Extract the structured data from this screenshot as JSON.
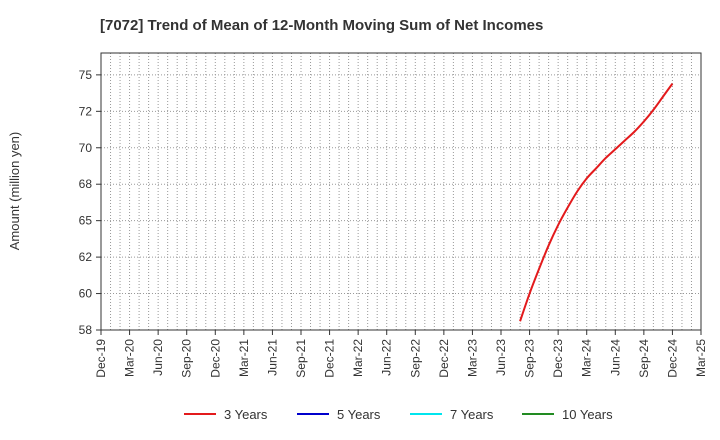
{
  "chart_data": {
    "type": "line",
    "title": "[7072]  Trend of Mean of 12-Month Moving Sum of Net Incomes",
    "xlabel": "",
    "ylabel": "Amount (million yen)",
    "x_ticks": [
      "Dec-19",
      "Mar-20",
      "Jun-20",
      "Sep-20",
      "Dec-20",
      "Mar-21",
      "Jun-21",
      "Sep-21",
      "Dec-21",
      "Mar-22",
      "Jun-22",
      "Sep-22",
      "Dec-22",
      "Mar-23",
      "Jun-23",
      "Sep-23",
      "Dec-23",
      "Mar-24",
      "Jun-24",
      "Sep-24",
      "Dec-24",
      "Mar-25"
    ],
    "y_ticks": [
      "58",
      "60",
      "62",
      "65",
      "68",
      "70",
      "72",
      "75"
    ],
    "ylim": [
      57.5,
      76.5
    ],
    "y_tick_values": [
      57.5,
      60,
      62.5,
      65,
      67.5,
      70,
      72.5,
      75
    ],
    "grid": true,
    "legend_position": "bottom",
    "series": [
      {
        "name": "3 Years",
        "color": "#e31a1c",
        "x": [
          "Aug-23",
          "Sep-23",
          "Oct-23",
          "Nov-23",
          "Dec-23",
          "Jan-24",
          "Feb-24",
          "Mar-24",
          "Apr-24",
          "May-24",
          "Jun-24",
          "Jul-24",
          "Aug-24",
          "Sep-24",
          "Oct-24",
          "Nov-24",
          "Dec-24"
        ],
        "values": [
          58.1,
          60.0,
          61.7,
          63.3,
          64.7,
          65.9,
          67.0,
          67.9,
          68.6,
          69.3,
          69.9,
          70.5,
          71.1,
          71.8,
          72.6,
          73.5,
          74.4
        ]
      },
      {
        "name": "5 Years",
        "color": "#0000cc",
        "x": [],
        "values": []
      },
      {
        "name": "7 Years",
        "color": "#00e5ee",
        "x": [],
        "values": []
      },
      {
        "name": "10 Years",
        "color": "#228b22",
        "x": [],
        "values": []
      }
    ]
  }
}
